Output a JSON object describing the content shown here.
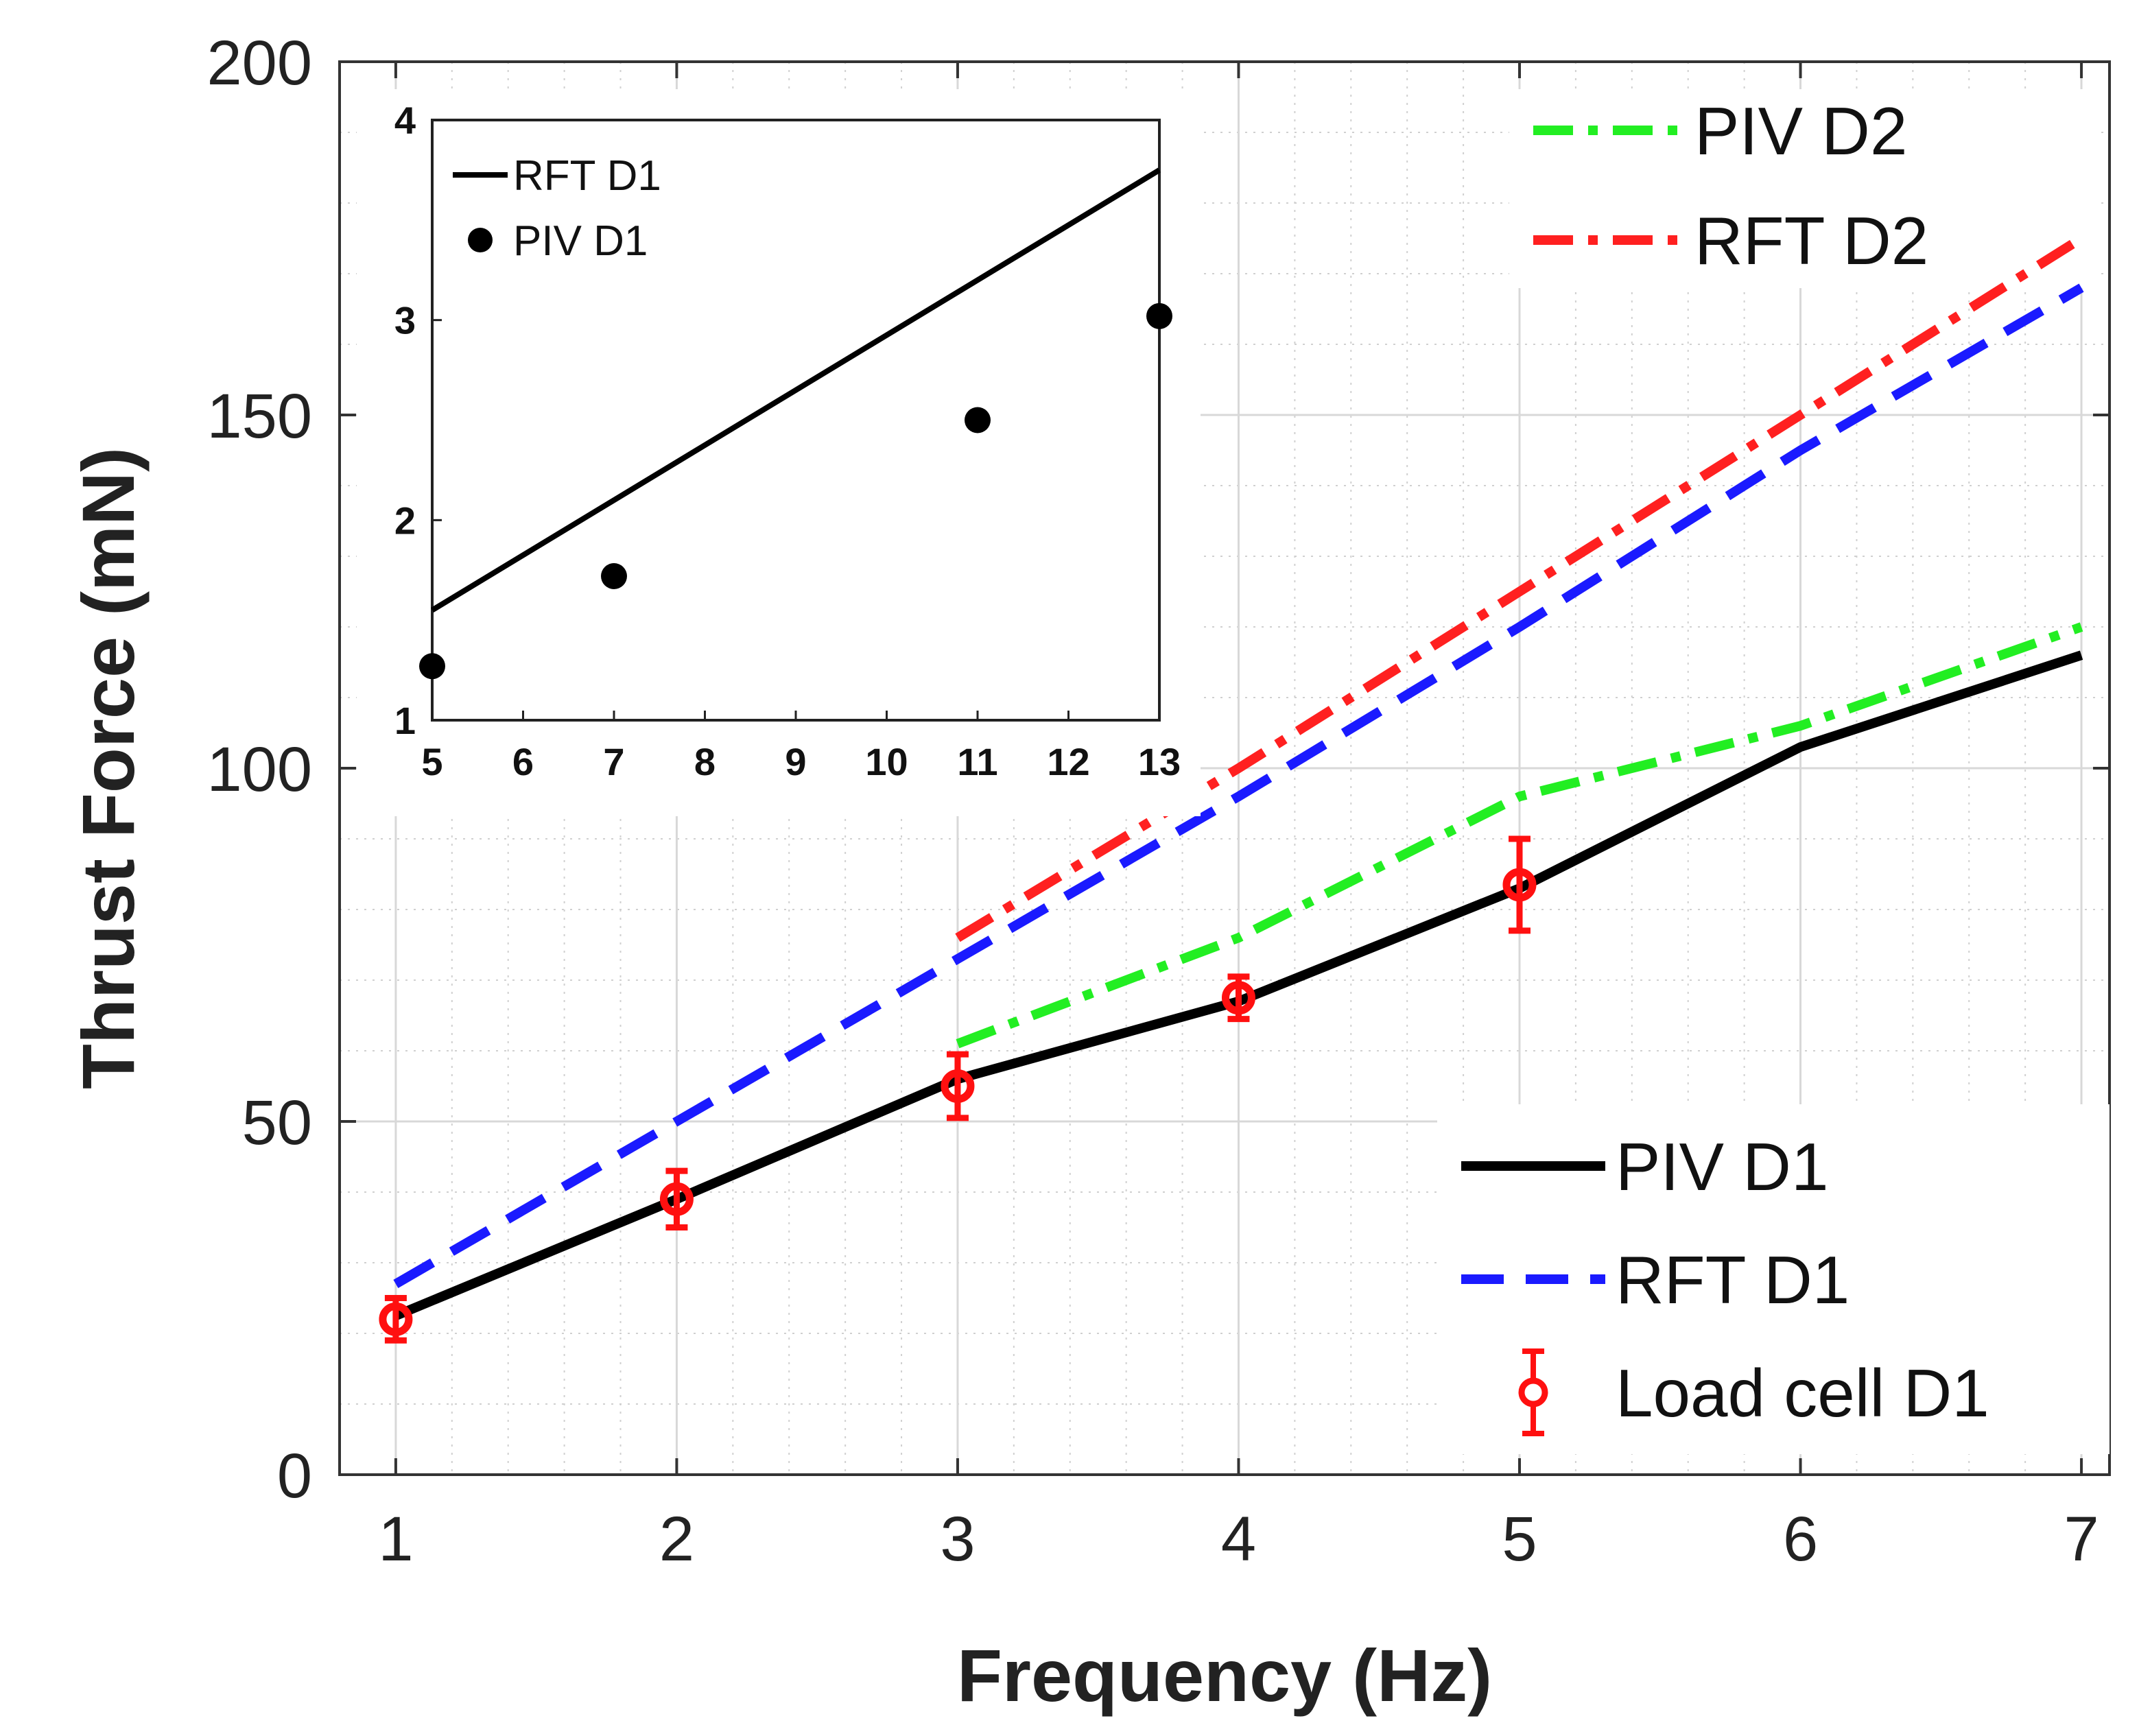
{
  "chart_data": [
    {
      "id": "main",
      "type": "line",
      "xlabel": "Frequency (Hz)",
      "ylabel": "Thrust Force (mN)",
      "xlim": [
        0.8,
        7.1
      ],
      "ylim": [
        0,
        200
      ],
      "xticks": [
        1,
        2,
        3,
        4,
        5,
        6,
        7
      ],
      "yticks": [
        0,
        50,
        100,
        150,
        200
      ],
      "grid": true,
      "series": [
        {
          "name": "PIV D2",
          "style": "dash-dot",
          "color": "#22ee22",
          "x": [
            3,
            4,
            5,
            6,
            7
          ],
          "y": [
            61,
            76,
            96,
            106,
            120
          ]
        },
        {
          "name": "RFT D2",
          "style": "dash-dot",
          "color": "#ff2020",
          "x": [
            3,
            4,
            5,
            6,
            7
          ],
          "y": [
            76,
            100,
            125,
            150,
            175
          ]
        },
        {
          "name": "PIV D1",
          "style": "solid",
          "color": "#000000",
          "x": [
            1,
            2,
            3,
            4,
            5,
            6,
            7
          ],
          "y": [
            22.5,
            39,
            56,
            67,
            83,
            103,
            116
          ]
        },
        {
          "name": "RFT D1",
          "style": "dashed",
          "color": "#1a1aff",
          "x": [
            1,
            2,
            3,
            4,
            5,
            6,
            7
          ],
          "y": [
            27,
            50,
            73,
            96,
            120,
            145,
            168
          ]
        },
        {
          "name": "Load cell D1",
          "style": "errorbar",
          "color": "#ff1010",
          "x": [
            1,
            2,
            3,
            4,
            5
          ],
          "y": [
            22,
            39,
            55,
            67.5,
            83.5
          ],
          "err": [
            3,
            4,
            4.5,
            3,
            6.5
          ]
        }
      ],
      "legend_top_right": [
        "PIV D2",
        "RFT D2"
      ],
      "legend_bottom_right": [
        "PIV D1",
        "RFT D1",
        "Load cell D1"
      ]
    },
    {
      "id": "inset",
      "type": "line",
      "xlabel": "",
      "ylabel": "",
      "xlim": [
        5,
        13
      ],
      "ylim": [
        1,
        4
      ],
      "xticks": [
        5,
        6,
        7,
        8,
        9,
        10,
        11,
        12,
        13
      ],
      "yticks": [
        1,
        2,
        3,
        4
      ],
      "grid": false,
      "series": [
        {
          "name": "RFT D1",
          "style": "solid",
          "color": "#000000",
          "x": [
            5,
            13
          ],
          "y": [
            1.55,
            3.75
          ]
        },
        {
          "name": "PIV D1",
          "style": "markers",
          "color": "#000000",
          "x": [
            5,
            7,
            11,
            13
          ],
          "y": [
            1.27,
            1.72,
            2.5,
            3.02
          ]
        }
      ],
      "legend": [
        "RFT D1",
        "PIV D1"
      ]
    }
  ]
}
